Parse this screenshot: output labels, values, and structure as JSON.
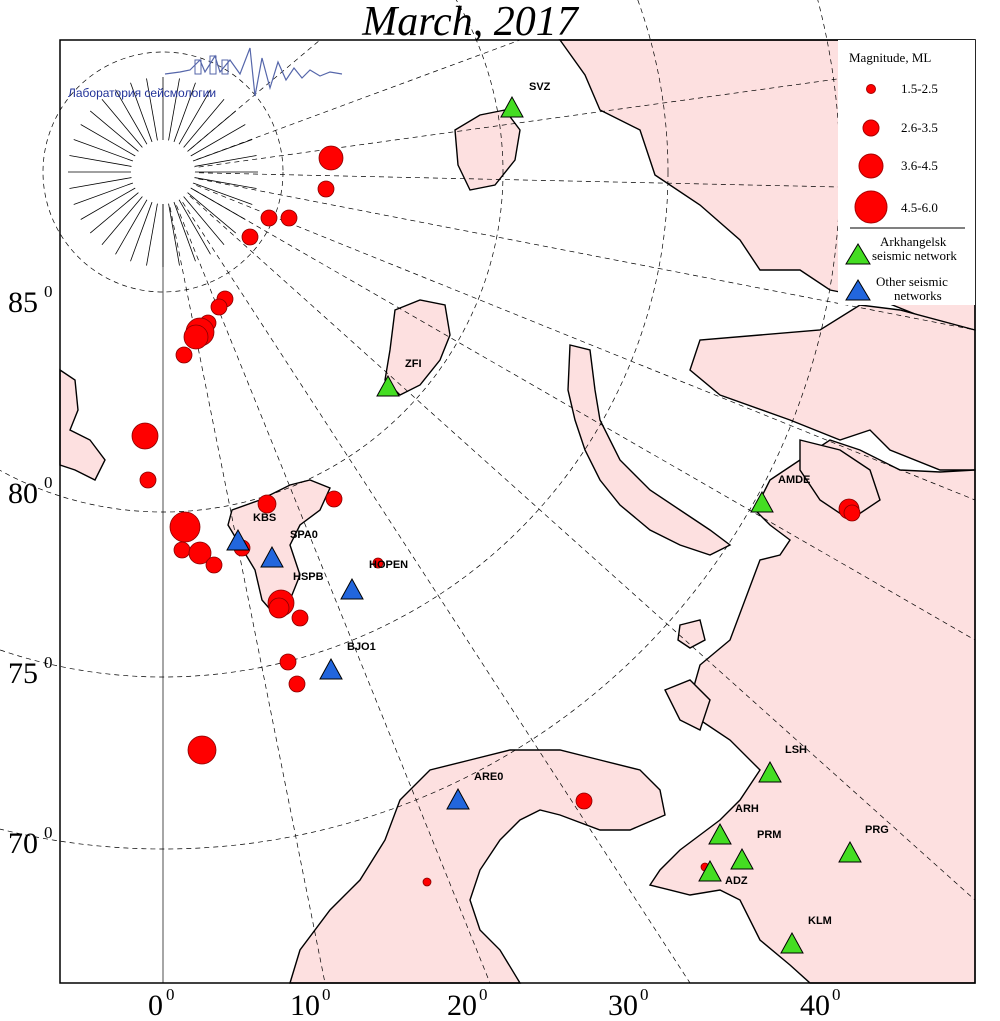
{
  "title": "March, 2017",
  "logo_text": "Лаборатория сейсмологии",
  "legend": {
    "heading": "Magnitude, ML",
    "classes": [
      "1.5-2.5",
      "2.6-3.5",
      "3.6-4.5",
      "4.5-6.0"
    ],
    "arkhangelsk_line1": "Arkhangelsk",
    "arkhangelsk_line2": "seismic network",
    "other_line1": "Other seismic",
    "other_line2": "networks"
  },
  "colors": {
    "land": "#fde0e0",
    "sea": "#ffffff",
    "event": "#ff0000",
    "arkhangelsk_station": "#44dd22",
    "other_station": "#2266dd"
  },
  "latitudes": [
    "85",
    "80",
    "75",
    "70"
  ],
  "longitudes": [
    "0",
    "10",
    "20",
    "30",
    "40"
  ],
  "degree_mark": "0",
  "stations": {
    "arkhangelsk": [
      "SVZ",
      "ZFI",
      "AMDE",
      "LSH",
      "ARH",
      "PRM",
      "ADZ",
      "PRG",
      "KLM"
    ],
    "other": [
      "KBS",
      "SPA0",
      "HSPB",
      "HOPEN",
      "BJO1",
      "ARE0"
    ]
  }
}
